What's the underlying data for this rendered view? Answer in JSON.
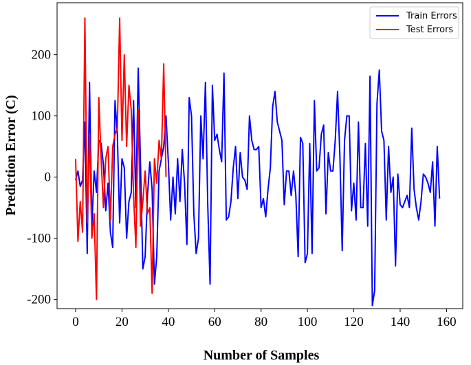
{
  "chart_data": {
    "type": "line",
    "title": "",
    "xlabel": "Number of Samples",
    "ylabel": "Prediction Error (C)",
    "xlim": [
      -8,
      167
    ],
    "ylim": [
      -215,
      285
    ],
    "xticks": [
      0,
      20,
      40,
      60,
      80,
      100,
      120,
      140,
      160
    ],
    "xtick_labels": [
      "0",
      "20",
      "40",
      "60",
      "80",
      "100",
      "120",
      "140",
      "160"
    ],
    "yticks": [
      -200,
      -100,
      0,
      100,
      200
    ],
    "ytick_labels": [
      "-200",
      "-100",
      "0",
      "100",
      "200"
    ],
    "grid": false,
    "legend_position": "top-right",
    "series": [
      {
        "name": "Train Errors",
        "color": "#0000ff",
        "values": [
          -5,
          10,
          -15,
          -5,
          90,
          -125,
          155,
          -80,
          10,
          -25,
          60,
          55,
          20,
          -55,
          -10,
          -90,
          -115,
          125,
          70,
          -75,
          30,
          15,
          -100,
          -40,
          -25,
          125,
          -50,
          178,
          20,
          -150,
          -130,
          -30,
          25,
          -20,
          -175,
          -130,
          10,
          30,
          50,
          100,
          25,
          -70,
          0,
          -60,
          30,
          -40,
          45,
          -10,
          -110,
          130,
          100,
          -60,
          -125,
          -100,
          100,
          30,
          155,
          -45,
          -175,
          150,
          60,
          70,
          45,
          25,
          170,
          -70,
          -65,
          -40,
          15,
          50,
          -35,
          40,
          0,
          -5,
          -20,
          100,
          60,
          45,
          45,
          50,
          -50,
          -35,
          -65,
          -20,
          15,
          115,
          140,
          90,
          75,
          60,
          -45,
          10,
          10,
          -30,
          10,
          -30,
          -130,
          65,
          55,
          -140,
          -125,
          55,
          -125,
          125,
          10,
          15,
          70,
          85,
          -60,
          40,
          10,
          10,
          60,
          140,
          35,
          -120,
          60,
          100,
          100,
          -55,
          -10,
          -70,
          90,
          -50,
          -50,
          55,
          -80,
          165,
          -210,
          -185,
          120,
          175,
          75,
          60,
          -70,
          50,
          -25,
          0,
          -145,
          5,
          -45,
          -50,
          -40,
          -30,
          -50,
          80,
          -20,
          -50,
          -70,
          -40,
          5,
          0,
          -10,
          -25,
          25,
          -80,
          50,
          -35
        ]
      },
      {
        "name": "Test Errors",
        "color": "#ff0000",
        "values": [
          30,
          -105,
          -40,
          -90,
          260,
          -75,
          70,
          -100,
          -60,
          -200,
          130,
          30,
          -50,
          30,
          50,
          -70,
          50,
          70,
          80,
          260,
          60,
          200,
          50,
          150,
          110,
          -30,
          -115,
          110,
          -80,
          -40,
          10,
          -60,
          -50,
          -190,
          30,
          -10,
          60,
          30,
          185,
          0
        ]
      }
    ]
  }
}
